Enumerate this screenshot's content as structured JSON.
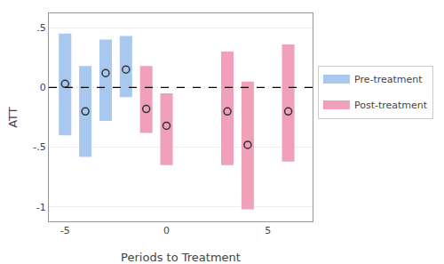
{
  "chart_data": {
    "type": "interval",
    "xlabel": "Periods to Treatment",
    "ylabel": "ATT",
    "xlim": [
      -5.8,
      7.2
    ],
    "ylim": [
      -1.12,
      0.62
    ],
    "xticks": [
      -5,
      0,
      5
    ],
    "yticks": [
      -1,
      {
        "value": -0.5,
        "label": "-.5"
      },
      0,
      {
        "value": 0.5,
        "label": ".5"
      }
    ],
    "grid": true,
    "legend": "right",
    "reference_y": 0,
    "series": [
      {
        "name": "Pre-treatment",
        "color": "#a8c8f0",
        "x": [
          -5,
          -4,
          -3,
          -2
        ],
        "values": [
          0.03,
          -0.2,
          0.12,
          0.15
        ],
        "ci_low": [
          -0.4,
          -0.58,
          -0.28,
          -0.08
        ],
        "ci_high": [
          0.45,
          0.18,
          0.4,
          0.43
        ]
      },
      {
        "name": "Post-treatment",
        "color": "#f0a0b8",
        "x": [
          -1,
          0,
          3,
          4,
          6
        ],
        "values": [
          -0.18,
          -0.32,
          -0.2,
          -0.48,
          -0.2
        ],
        "ci_low": [
          -0.38,
          -0.65,
          -0.65,
          -1.02,
          -0.62
        ],
        "ci_high": [
          0.18,
          -0.05,
          0.3,
          0.05,
          0.36
        ]
      }
    ]
  }
}
